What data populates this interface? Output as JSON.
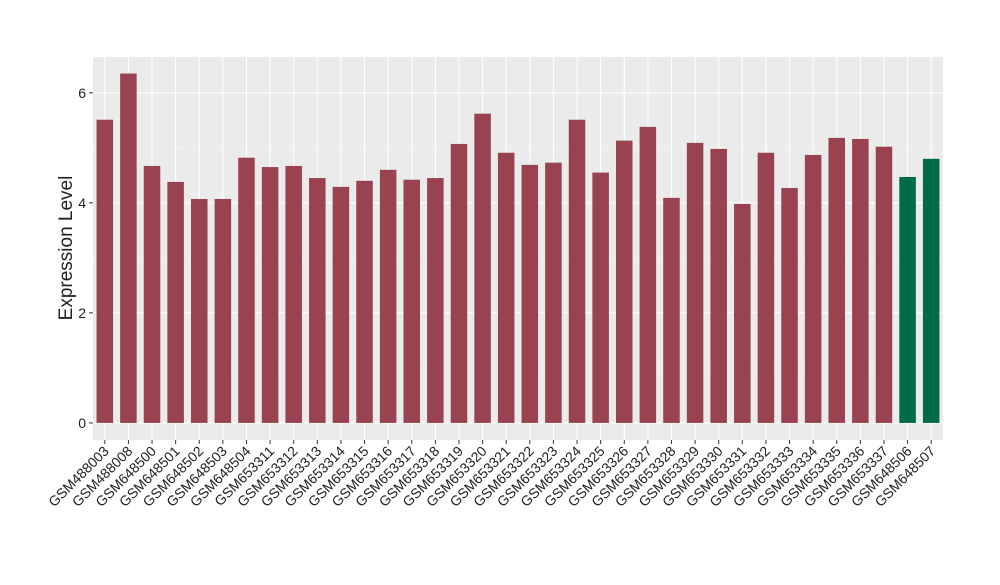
{
  "chart_data": {
    "type": "bar",
    "y_label": "Expression Level",
    "categories": [
      "GSM488003",
      "GSM488008",
      "GSM648500",
      "GSM648501",
      "GSM648502",
      "GSM648503",
      "GSM648504",
      "GSM653311",
      "GSM653312",
      "GSM653313",
      "GSM653314",
      "GSM653315",
      "GSM653316",
      "GSM653317",
      "GSM653318",
      "GSM653319",
      "GSM653320",
      "GSM653321",
      "GSM653322",
      "GSM653323",
      "GSM653324",
      "GSM653325",
      "GSM653326",
      "GSM653327",
      "GSM653328",
      "GSM653329",
      "GSM653330",
      "GSM653331",
      "GSM653332",
      "GSM653333",
      "GSM653334",
      "GSM653335",
      "GSM653336",
      "GSM653337",
      "GSM648506",
      "GSM648507"
    ],
    "values": [
      5.51,
      6.35,
      4.67,
      4.38,
      4.07,
      4.07,
      4.82,
      4.65,
      4.67,
      4.45,
      4.29,
      4.4,
      4.6,
      4.42,
      4.45,
      5.07,
      5.62,
      4.91,
      4.69,
      4.73,
      5.51,
      4.55,
      5.13,
      5.38,
      4.09,
      5.09,
      4.98,
      3.98,
      4.91,
      4.27,
      4.87,
      5.18,
      5.16,
      5.02,
      4.47,
      4.8
    ],
    "colors": [
      "#9a4350",
      "#9a4350",
      "#9a4350",
      "#9a4350",
      "#9a4350",
      "#9a4350",
      "#9a4350",
      "#9a4350",
      "#9a4350",
      "#9a4350",
      "#9a4350",
      "#9a4350",
      "#9a4350",
      "#9a4350",
      "#9a4350",
      "#9a4350",
      "#9a4350",
      "#9a4350",
      "#9a4350",
      "#9a4350",
      "#9a4350",
      "#9a4350",
      "#9a4350",
      "#9a4350",
      "#9a4350",
      "#9a4350",
      "#9a4350",
      "#9a4350",
      "#9a4350",
      "#9a4350",
      "#9a4350",
      "#9a4350",
      "#9a4350",
      "#9a4350",
      "#006b45",
      "#006b45"
    ],
    "ylim": [
      -0.31,
      6.65
    ],
    "yticks": [
      0,
      2,
      4,
      6
    ],
    "grid": true
  }
}
